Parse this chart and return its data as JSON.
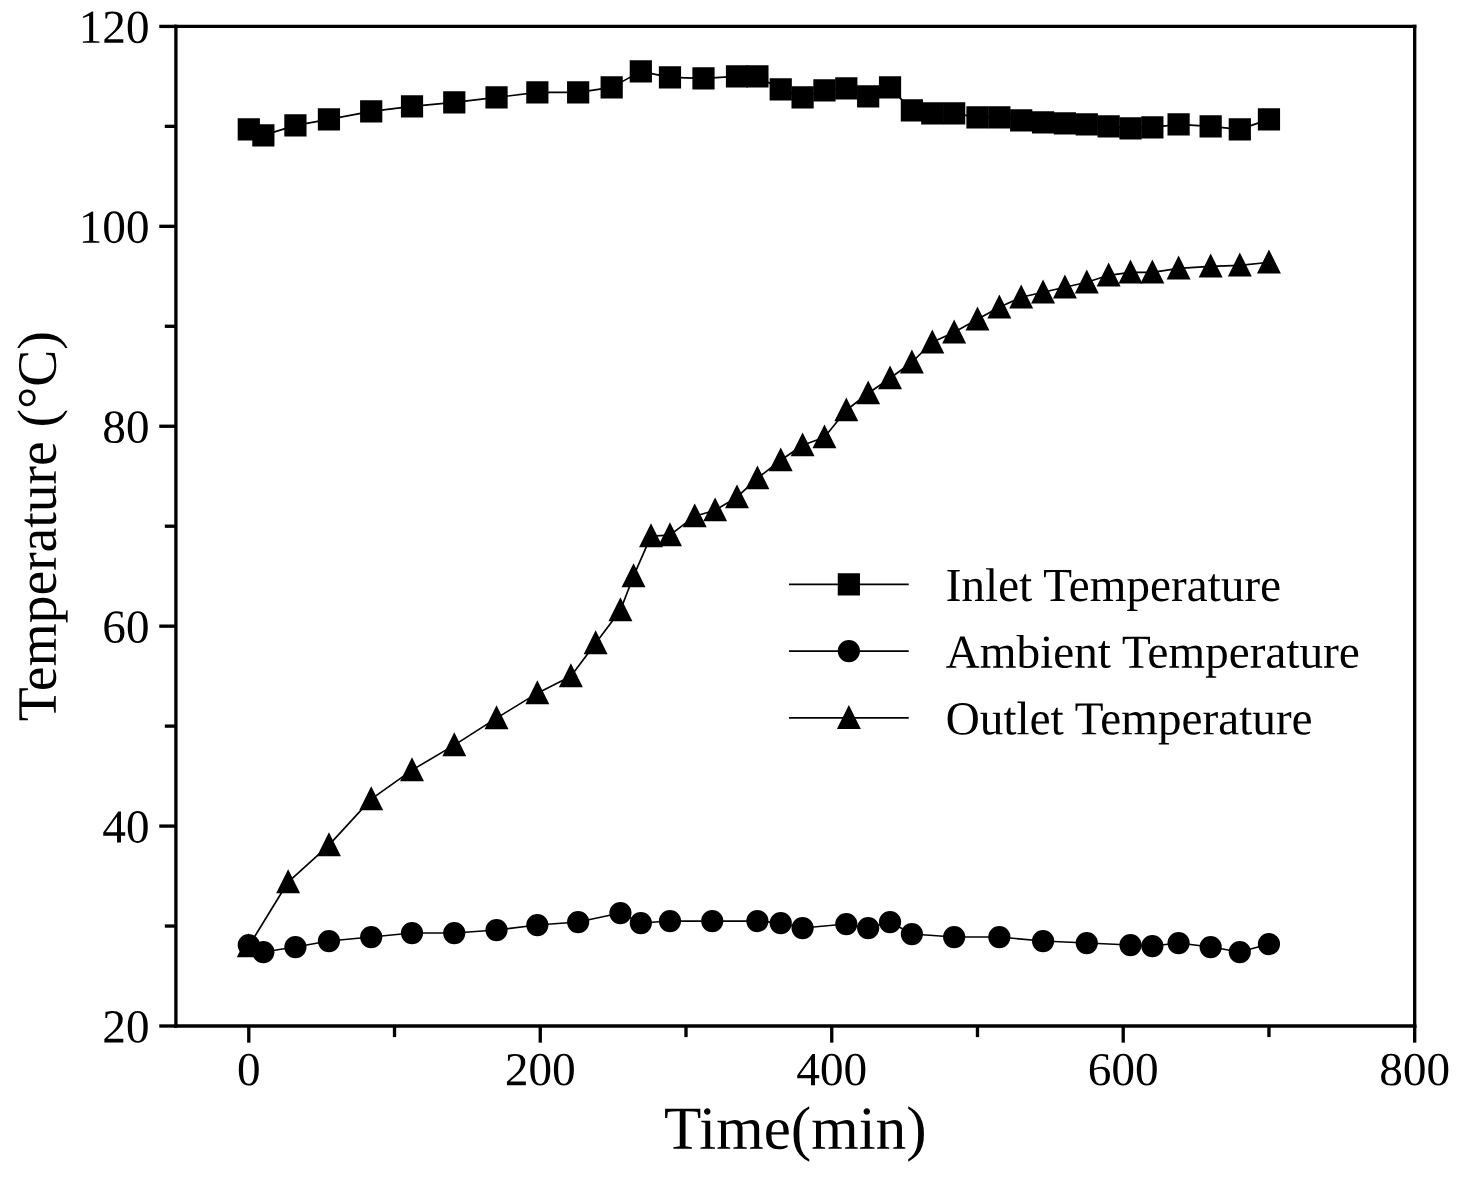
{
  "chart_data": {
    "type": "line",
    "xlabel": "Time(min)",
    "ylabel": "Temperature (°C)",
    "xlim": [
      -50,
      800
    ],
    "xticks": [
      0,
      200,
      400,
      600,
      800
    ],
    "ylim": [
      20,
      120
    ],
    "yticks": [
      20,
      40,
      60,
      80,
      100,
      120
    ],
    "grid": false,
    "legend": "right",
    "line_style": "solid",
    "series": [
      {
        "name": "Inlet Temperature",
        "color": "#000000",
        "marker": "square",
        "x": [
          0,
          10,
          32,
          55,
          84,
          112,
          141,
          170,
          198,
          226,
          249,
          269,
          289,
          312,
          335,
          349,
          365,
          380,
          395,
          410,
          425,
          440,
          455,
          469,
          484,
          500,
          515,
          530,
          545,
          560,
          575,
          590,
          605,
          620,
          638,
          660,
          680,
          700
        ],
        "values": [
          109.7,
          109.1,
          110.1,
          110.7,
          111.5,
          112.0,
          112.4,
          112.9,
          113.4,
          113.4,
          113.9,
          115.5,
          114.9,
          114.8,
          115.0,
          115.0,
          113.7,
          112.9,
          113.6,
          113.8,
          113.0,
          113.9,
          111.6,
          111.3,
          111.3,
          110.9,
          110.9,
          110.6,
          110.4,
          110.3,
          110.2,
          110.0,
          109.8,
          109.9,
          110.2,
          110.0,
          109.7,
          110.7
        ]
      },
      {
        "name": "Ambient Temperature",
        "color": "#000000",
        "marker": "circle",
        "x": [
          0,
          10,
          32,
          55,
          84,
          112,
          141,
          170,
          198,
          226,
          255,
          269,
          289,
          318,
          349,
          365,
          380,
          410,
          425,
          440,
          455,
          484,
          515,
          545,
          575,
          605,
          620,
          638,
          660,
          680,
          700
        ],
        "values": [
          28.1,
          27.4,
          27.9,
          28.5,
          28.9,
          29.3,
          29.3,
          29.6,
          30.1,
          30.4,
          31.3,
          30.3,
          30.5,
          30.5,
          30.5,
          30.3,
          29.8,
          30.2,
          29.8,
          30.4,
          29.2,
          28.9,
          28.9,
          28.5,
          28.3,
          28.1,
          28.0,
          28.3,
          27.9,
          27.4,
          28.2
        ]
      },
      {
        "name": "Outlet Temperature",
        "color": "#000000",
        "marker": "triangle",
        "x": [
          0,
          27,
          55,
          84,
          112,
          141,
          170,
          198,
          221,
          238,
          255,
          264,
          276,
          289,
          306,
          320,
          335,
          349,
          365,
          380,
          395,
          410,
          425,
          440,
          455,
          469,
          484,
          500,
          515,
          530,
          545,
          560,
          575,
          590,
          605,
          620,
          638,
          660,
          680,
          700
        ],
        "values": [
          28.0,
          34.4,
          38.1,
          42.7,
          45.6,
          48.1,
          50.8,
          53.3,
          55.0,
          58.3,
          61.6,
          65.0,
          69.0,
          69.1,
          71.0,
          71.6,
          72.9,
          74.8,
          76.6,
          78.1,
          78.9,
          81.6,
          83.3,
          84.8,
          86.4,
          88.4,
          89.4,
          90.7,
          91.9,
          92.9,
          93.4,
          93.9,
          94.4,
          95.1,
          95.4,
          95.4,
          95.8,
          96.0,
          96.1,
          96.4
        ]
      }
    ]
  }
}
